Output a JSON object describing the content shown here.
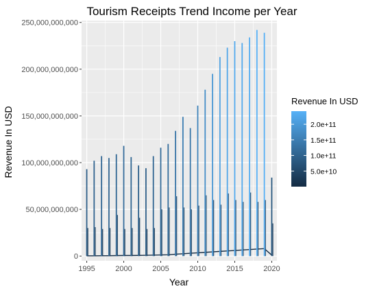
{
  "chart_data": {
    "type": "line",
    "title": "Tourism Receipts Trend Income per Year",
    "xlabel": "Year",
    "ylabel": "Revenue In USD",
    "xlim": [
      1994.3,
      2020.7
    ],
    "ylim": [
      -5000000000,
      252000000000
    ],
    "x_ticks": [
      1995,
      2000,
      2005,
      2010,
      2015,
      2020
    ],
    "x_tick_labels": [
      "1995",
      "2000",
      "2005",
      "2010",
      "2015",
      "2020"
    ],
    "y_ticks": [
      0,
      50000000000,
      100000000000,
      150000000000,
      200000000000,
      250000000000
    ],
    "y_tick_labels": [
      "0",
      "50,000,000,000",
      "100,000,000,000",
      "150,000,000,000",
      "200,000,000,000",
      "250,000,000,000"
    ],
    "grid": true,
    "legend": {
      "title": "Revenue In USD",
      "placement": "right",
      "type": "colorbar",
      "min": 0,
      "max": 242000000000,
      "ticks": [
        50000000000,
        100000000000,
        150000000000,
        200000000000
      ],
      "tick_labels": [
        "5.0e+10",
        "1.0e+11",
        "1.5e+11",
        "2.0e+11"
      ],
      "color_low": "#132B43",
      "color_high": "#56B1F7"
    },
    "series": [
      {
        "years": [
          1995,
          1996,
          1997,
          1998,
          1999,
          2000,
          2001,
          2002,
          2003,
          2004,
          2005,
          2006,
          2007,
          2008,
          2009,
          2010,
          2011,
          2012,
          2013,
          2014,
          2015,
          2016,
          2017,
          2018,
          2019,
          2020
        ],
        "peak_values": [
          93000000000,
          102000000000,
          107000000000,
          105000000000,
          109000000000,
          118000000000,
          106000000000,
          97000000000,
          94000000000,
          107000000000,
          116000000000,
          120000000000,
          134000000000,
          149000000000,
          137000000000,
          161000000000,
          178000000000,
          195000000000,
          213000000000,
          223000000000,
          230000000000,
          228000000000,
          234000000000,
          242000000000,
          239000000000,
          84000000000
        ],
        "secondary_values": [
          30000000000,
          31000000000,
          29000000000,
          30000000000,
          44000000000,
          29000000000,
          30000000000,
          41000000000,
          29000000000,
          30000000000,
          50000000000,
          52000000000,
          64000000000,
          52000000000,
          50000000000,
          54000000000,
          65000000000,
          60000000000,
          55000000000,
          67000000000,
          60000000000,
          58000000000,
          68000000000,
          58000000000,
          60000000000,
          35000000000
        ],
        "baseline_values": [
          300000000,
          300000000,
          400000000,
          400000000,
          500000000,
          600000000,
          600000000,
          700000000,
          800000000,
          1000000000,
          1200000000,
          1400000000,
          2000000000,
          2500000000,
          3000000000,
          3500000000,
          4000000000,
          4500000000,
          5000000000,
          5500000000,
          6000000000,
          6500000000,
          7000000000,
          7500000000,
          8000000000,
          1000000000
        ]
      }
    ]
  }
}
